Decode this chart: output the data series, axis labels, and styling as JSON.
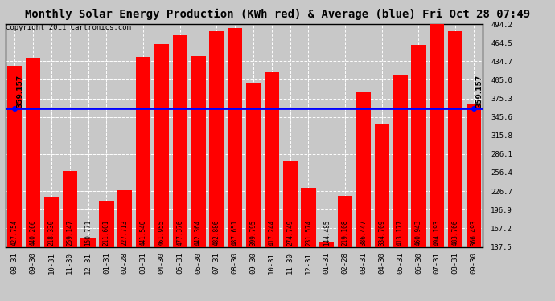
{
  "title": "Monthly Solar Energy Production (KWh red) & Average (blue) Fri Oct 28 07:49",
  "copyright": "Copyright 2011 Cartronics.com",
  "categories": [
    "08-31",
    "09-30",
    "10-31",
    "11-30",
    "12-31",
    "01-31",
    "02-28",
    "03-31",
    "04-30",
    "05-31",
    "06-30",
    "07-31",
    "08-30",
    "09-30",
    "10-31",
    "11-30",
    "12-31",
    "01-31",
    "02-28",
    "03-31",
    "04-30",
    "05-31",
    "06-30",
    "07-31",
    "08-31",
    "09-30"
  ],
  "values": [
    427.754,
    440.266,
    218.33,
    259.147,
    150.771,
    211.601,
    227.713,
    441.54,
    461.955,
    477.376,
    442.364,
    482.886,
    487.651,
    399.795,
    417.244,
    274.749,
    231.574,
    144.485,
    219.108,
    386.447,
    334.709,
    413.177,
    460.943,
    494.193,
    483.766,
    366.493
  ],
  "average": 359.157,
  "bar_color": "#ff0000",
  "avg_line_color": "#0000ff",
  "bg_color": "#c8c8c8",
  "grid_color": "#ffffff",
  "yticks": [
    137.5,
    167.2,
    196.9,
    226.7,
    256.4,
    286.1,
    315.8,
    345.6,
    375.3,
    405.0,
    434.7,
    464.5,
    494.2
  ],
  "ymin": 137.5,
  "ymax": 494.2,
  "title_fontsize": 10,
  "copyright_fontsize": 6.5,
  "bar_label_fontsize": 5.5,
  "tick_fontsize": 6.5,
  "avg_fontsize": 6.5
}
